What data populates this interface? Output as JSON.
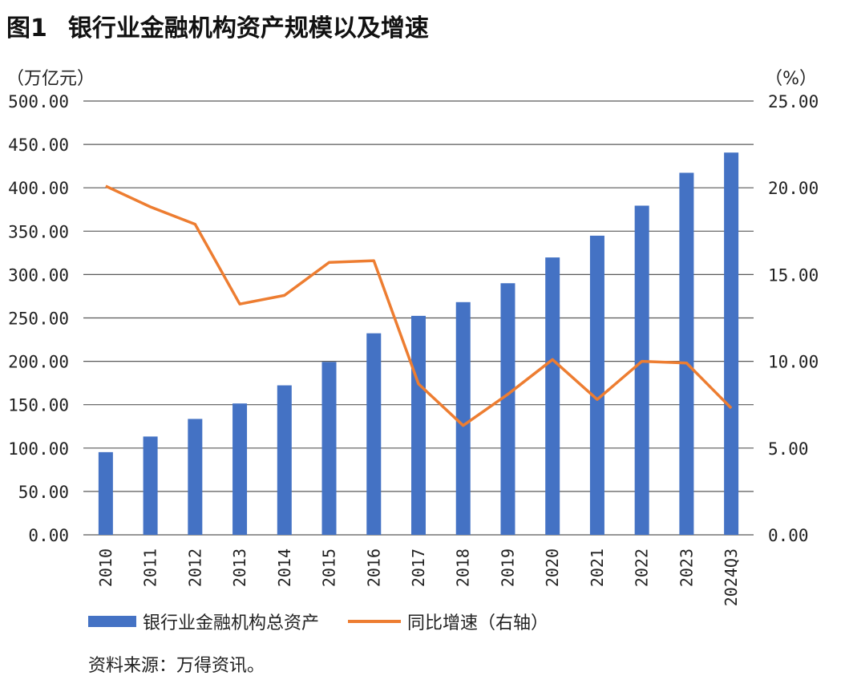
{
  "figure": {
    "number": "图1",
    "title": "银行业金融机构资产规模以及增速",
    "source": "资料来源：万得资讯。"
  },
  "colors": {
    "bar": "#4472C4",
    "line": "#ED7D31",
    "grid": "#595959"
  },
  "chart_data": {
    "type": "bar",
    "categories": [
      "2010",
      "2011",
      "2012",
      "2013",
      "2014",
      "2015",
      "2016",
      "2017",
      "2018",
      "2019",
      "2020",
      "2021",
      "2022",
      "2023",
      "2024Q3"
    ],
    "y_unit_left": "（万亿元）",
    "y_unit_right": "（%）",
    "ylim_left": [
      0,
      500
    ],
    "ylim_right": [
      0,
      25
    ],
    "left_ticks": [
      "0.00",
      "50.00",
      "100.00",
      "150.00",
      "200.00",
      "250.00",
      "300.00",
      "350.00",
      "400.00",
      "450.00",
      "500.00"
    ],
    "right_ticks": [
      "0.00",
      "5.00",
      "10.00",
      "15.00",
      "20.00",
      "25.00"
    ],
    "grid": true,
    "legend_position": "bottom",
    "series": [
      {
        "name": "银行业金融机构总资产",
        "type": "bar",
        "axis": "left",
        "values": [
          95.3,
          113.3,
          133.6,
          151.4,
          172.3,
          199.3,
          232.3,
          252.4,
          268.2,
          290.0,
          319.7,
          344.8,
          379.4,
          417.3,
          440.6
        ]
      },
      {
        "name": "同比增速（右轴）",
        "type": "line",
        "axis": "right",
        "values": [
          20.1,
          18.9,
          17.9,
          13.3,
          13.8,
          15.7,
          15.8,
          8.7,
          6.3,
          8.1,
          10.1,
          7.8,
          10.0,
          9.9,
          7.3
        ]
      }
    ]
  }
}
